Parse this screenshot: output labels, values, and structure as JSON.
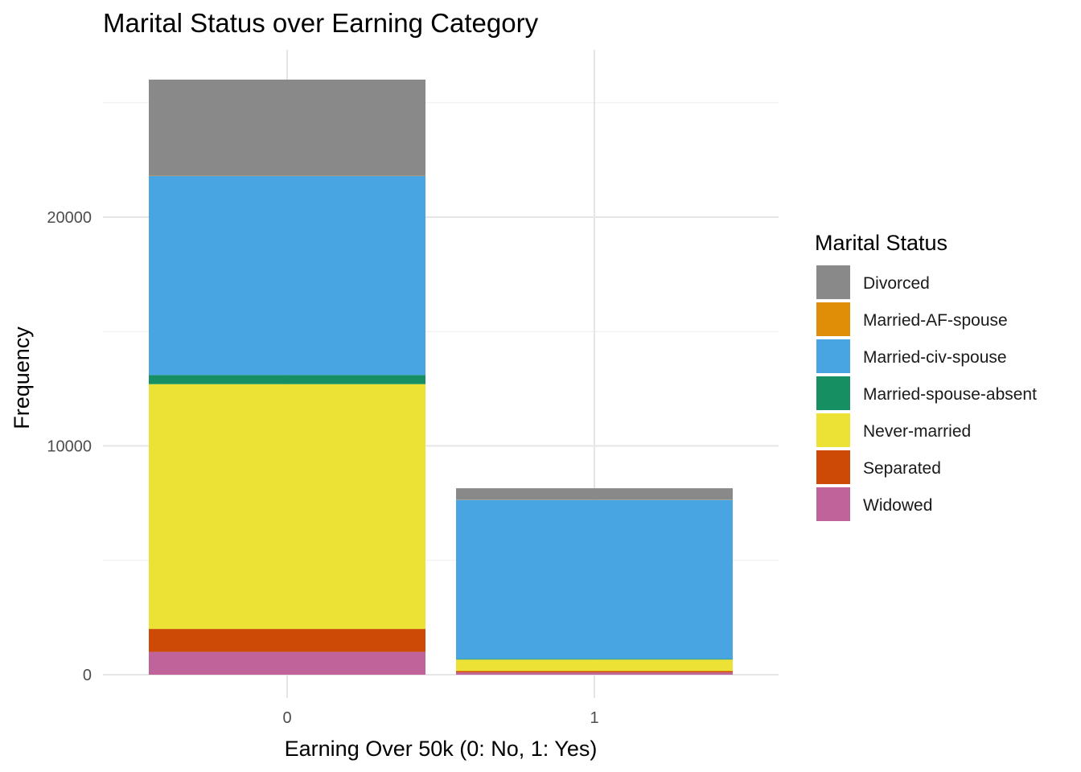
{
  "chart_data": {
    "type": "bar",
    "stacked": true,
    "title": "Marital Status over Earning Category",
    "xlabel": "Earning Over 50k (0: No, 1: Yes)",
    "ylabel": "Frequency",
    "categories": [
      "0",
      "1"
    ],
    "ylim": [
      0,
      26000
    ],
    "yticks": [
      0,
      10000,
      20000
    ],
    "grid": true,
    "legend": {
      "title": "Marital Status",
      "position": "right"
    },
    "series": [
      {
        "name": "Widowed",
        "color": "#c0639b",
        "values": [
          1000,
          100
        ]
      },
      {
        "name": "Separated",
        "color": "#cc4a05",
        "values": [
          1000,
          60
        ]
      },
      {
        "name": "Never-married",
        "color": "#ece236",
        "values": [
          10700,
          500
        ]
      },
      {
        "name": "Married-spouse-absent",
        "color": "#168f63",
        "values": [
          400,
          30
        ]
      },
      {
        "name": "Married-civ-spouse",
        "color": "#49a4e2",
        "values": [
          8700,
          6950
        ]
      },
      {
        "name": "Married-AF-spouse",
        "color": "#e08d08",
        "values": [
          10,
          10
        ]
      },
      {
        "name": "Divorced",
        "color": "#898989",
        "values": [
          4200,
          500
        ]
      }
    ],
    "legend_order": [
      "Divorced",
      "Married-AF-spouse",
      "Married-civ-spouse",
      "Married-spouse-absent",
      "Never-married",
      "Separated",
      "Widowed"
    ]
  }
}
